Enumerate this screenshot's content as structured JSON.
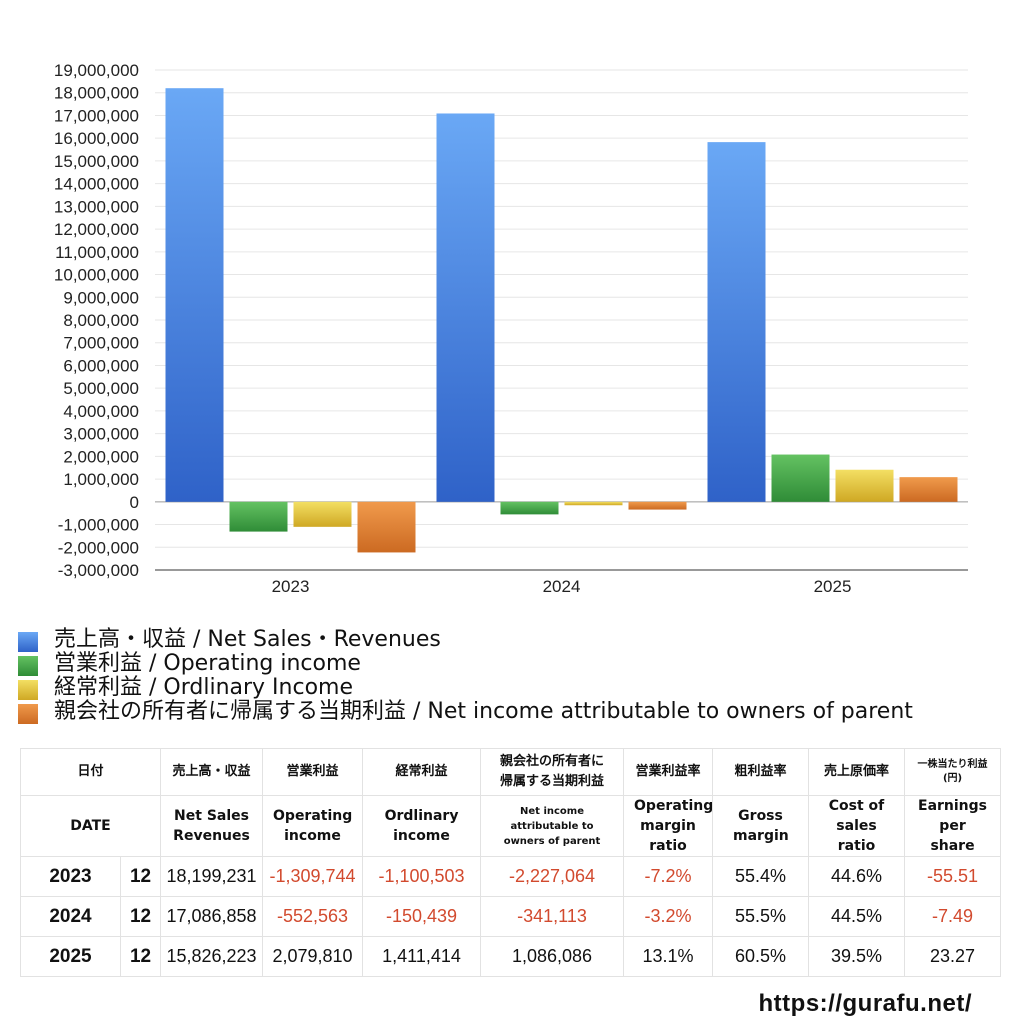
{
  "chart_data": {
    "type": "bar",
    "categories": [
      "2023",
      "2024",
      "2025"
    ],
    "series": [
      {
        "name": "売上高・収益 / Net Sales・Revenues",
        "color": "#3a78e0",
        "values": [
          18199231,
          17086858,
          15826223
        ]
      },
      {
        "name": "営業利益 / Operating income",
        "color": "#43a34a",
        "values": [
          -1309744,
          -552563,
          2079810
        ]
      },
      {
        "name": "経常利益 / Ordlinary Income",
        "color": "#e0c23a",
        "values": [
          -1100503,
          -150439,
          1411414
        ]
      },
      {
        "name": "親会社の所有者に帰属する当期利益 / Net income attributable to owners of parent",
        "color": "#de7e2f",
        "values": [
          -2227064,
          -341113,
          1086086
        ]
      }
    ],
    "ylim": [
      -3000000,
      19000000
    ],
    "ytick_step": 1000000,
    "grid": true,
    "legend_position": "bottom"
  },
  "table": {
    "header_jp": [
      "日付",
      "売上高・収益",
      "営業利益",
      "経常利益",
      "親会社の所有者に帰属する当期利益",
      "営業利益率",
      "粗利益率",
      "売上原価率",
      "一株当たり利益(円)"
    ],
    "header_en": [
      "DATE",
      "Net Sales Revenues",
      "Operating income",
      "Ordlinary income",
      "Net income attributable to owners of parent",
      "Operating margin ratio",
      "Gross margin",
      "Cost of sales ratio",
      "Earnings per share"
    ],
    "rows": [
      {
        "year": "2023",
        "month": "12",
        "sales": "18,199,231",
        "op": "-1,309,744",
        "ord": "-1,100,503",
        "net": "-2,227,064",
        "op_margin": "-7.2%",
        "gross": "55.4%",
        "cost": "44.6%",
        "eps": "-55.51"
      },
      {
        "year": "2024",
        "month": "12",
        "sales": "17,086,858",
        "op": "-552,563",
        "ord": "-150,439",
        "net": "-341,113",
        "op_margin": "-3.2%",
        "gross": "55.5%",
        "cost": "44.5%",
        "eps": "-7.49"
      },
      {
        "year": "2025",
        "month": "12",
        "sales": "15,826,223",
        "op": "2,079,810",
        "ord": "1,411,414",
        "net": "1,086,086",
        "op_margin": "13.1%",
        "gross": "60.5%",
        "cost": "39.5%",
        "eps": "23.27"
      }
    ]
  },
  "footer": {
    "url": "https://gurafu.net/"
  }
}
